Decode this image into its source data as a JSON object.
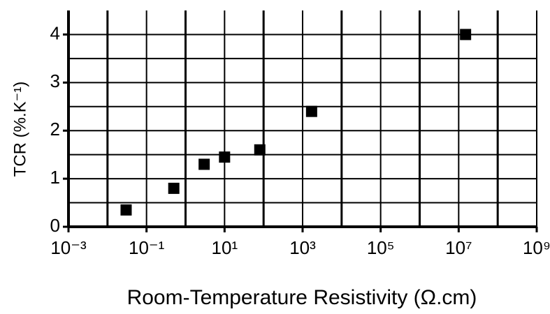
{
  "chart_data": {
    "type": "scatter",
    "xlabel": "Room-Temperature Resistivity (Ω.cm)",
    "ylabel": "TCR (%.K⁻¹)",
    "x": [
      0.03,
      0.5,
      3,
      10,
      80,
      1700,
      15000000
    ],
    "values": [
      0.35,
      0.8,
      1.3,
      1.45,
      1.6,
      2.4,
      4.0
    ],
    "color": "#000000",
    "xscale": "log",
    "xlim": [
      0.001,
      1000000000
    ],
    "ylim": [
      0,
      4.5
    ],
    "xticks": [
      {
        "value": 0.001,
        "label": "10⁻³"
      },
      {
        "value": 0.1,
        "label": "10⁻¹"
      },
      {
        "value": 10,
        "label": "10¹"
      },
      {
        "value": 1000,
        "label": "10³"
      },
      {
        "value": 100000,
        "label": "10⁵"
      },
      {
        "value": 10000000,
        "label": "10⁷"
      },
      {
        "value": 1000000000,
        "label": "10⁹"
      }
    ],
    "yticks": [
      0,
      1,
      2,
      3,
      4
    ],
    "grid": true
  }
}
